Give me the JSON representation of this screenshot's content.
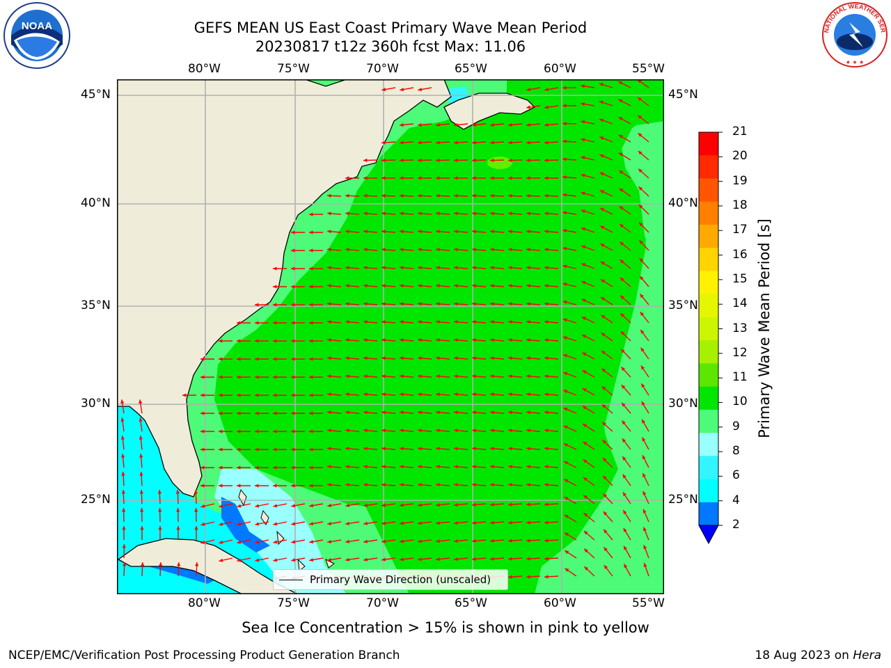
{
  "header": {
    "title_line1": "GEFS MEAN US East Coast Primary Wave Mean Period",
    "title_line2": "20230817 t12z 360h fcst   Max: 11.06"
  },
  "logos": {
    "left": {
      "name": "noaa-logo",
      "text": "NOAA"
    },
    "right": {
      "name": "national-weather-service-logo",
      "text": "NATIONAL WEATHER SERVICE"
    }
  },
  "map": {
    "lon_labels": [
      "80°W",
      "75°W",
      "70°W",
      "65°W",
      "60°W",
      "55°W"
    ],
    "lat_labels": [
      "45°N",
      "40°N",
      "35°N",
      "30°N",
      "25°N"
    ],
    "legend_label": "Primary Wave Direction (unscaled)",
    "colors": {
      "land": "#efedda",
      "ocean_9_10": "#4dfb79",
      "ocean_10_11": "#00e600",
      "ocean_11_12": "#61ef00",
      "shallow_8_9": "#99ffff",
      "shallow_6_8": "#33f5ff",
      "shallow_4_6": "#00ffff",
      "shallow_2_4": "#0078ff",
      "arrow": "#ff0000",
      "grid": "#b0b0b0"
    }
  },
  "colorbar": {
    "title": "Primary Wave Mean Period [s]",
    "ticks": [
      "21",
      "20",
      "19",
      "18",
      "17",
      "16",
      "15",
      "14",
      "13",
      "12",
      "11",
      "10",
      "9",
      "8",
      "6",
      "4",
      "2"
    ],
    "colors_top_to_bottom": [
      "#ff0000",
      "#ff2a00",
      "#ff5500",
      "#ff7f00",
      "#ffaa00",
      "#ffd400",
      "#fff100",
      "#e6f500",
      "#ccf500",
      "#a6f000",
      "#5ce600",
      "#00e600",
      "#4dfb79",
      "#99ffff",
      "#33f5ff",
      "#00ffff",
      "#0078ff"
    ],
    "extend_color": "#0000ff"
  },
  "subtitle": "Sea Ice Concentration > 15% is shown in pink to yellow",
  "footer": {
    "left": "NCEP/EMC/Verification Post Processing Product Generation Branch",
    "right_date": "18 Aug 2023 on ",
    "right_host": "Hera"
  }
}
